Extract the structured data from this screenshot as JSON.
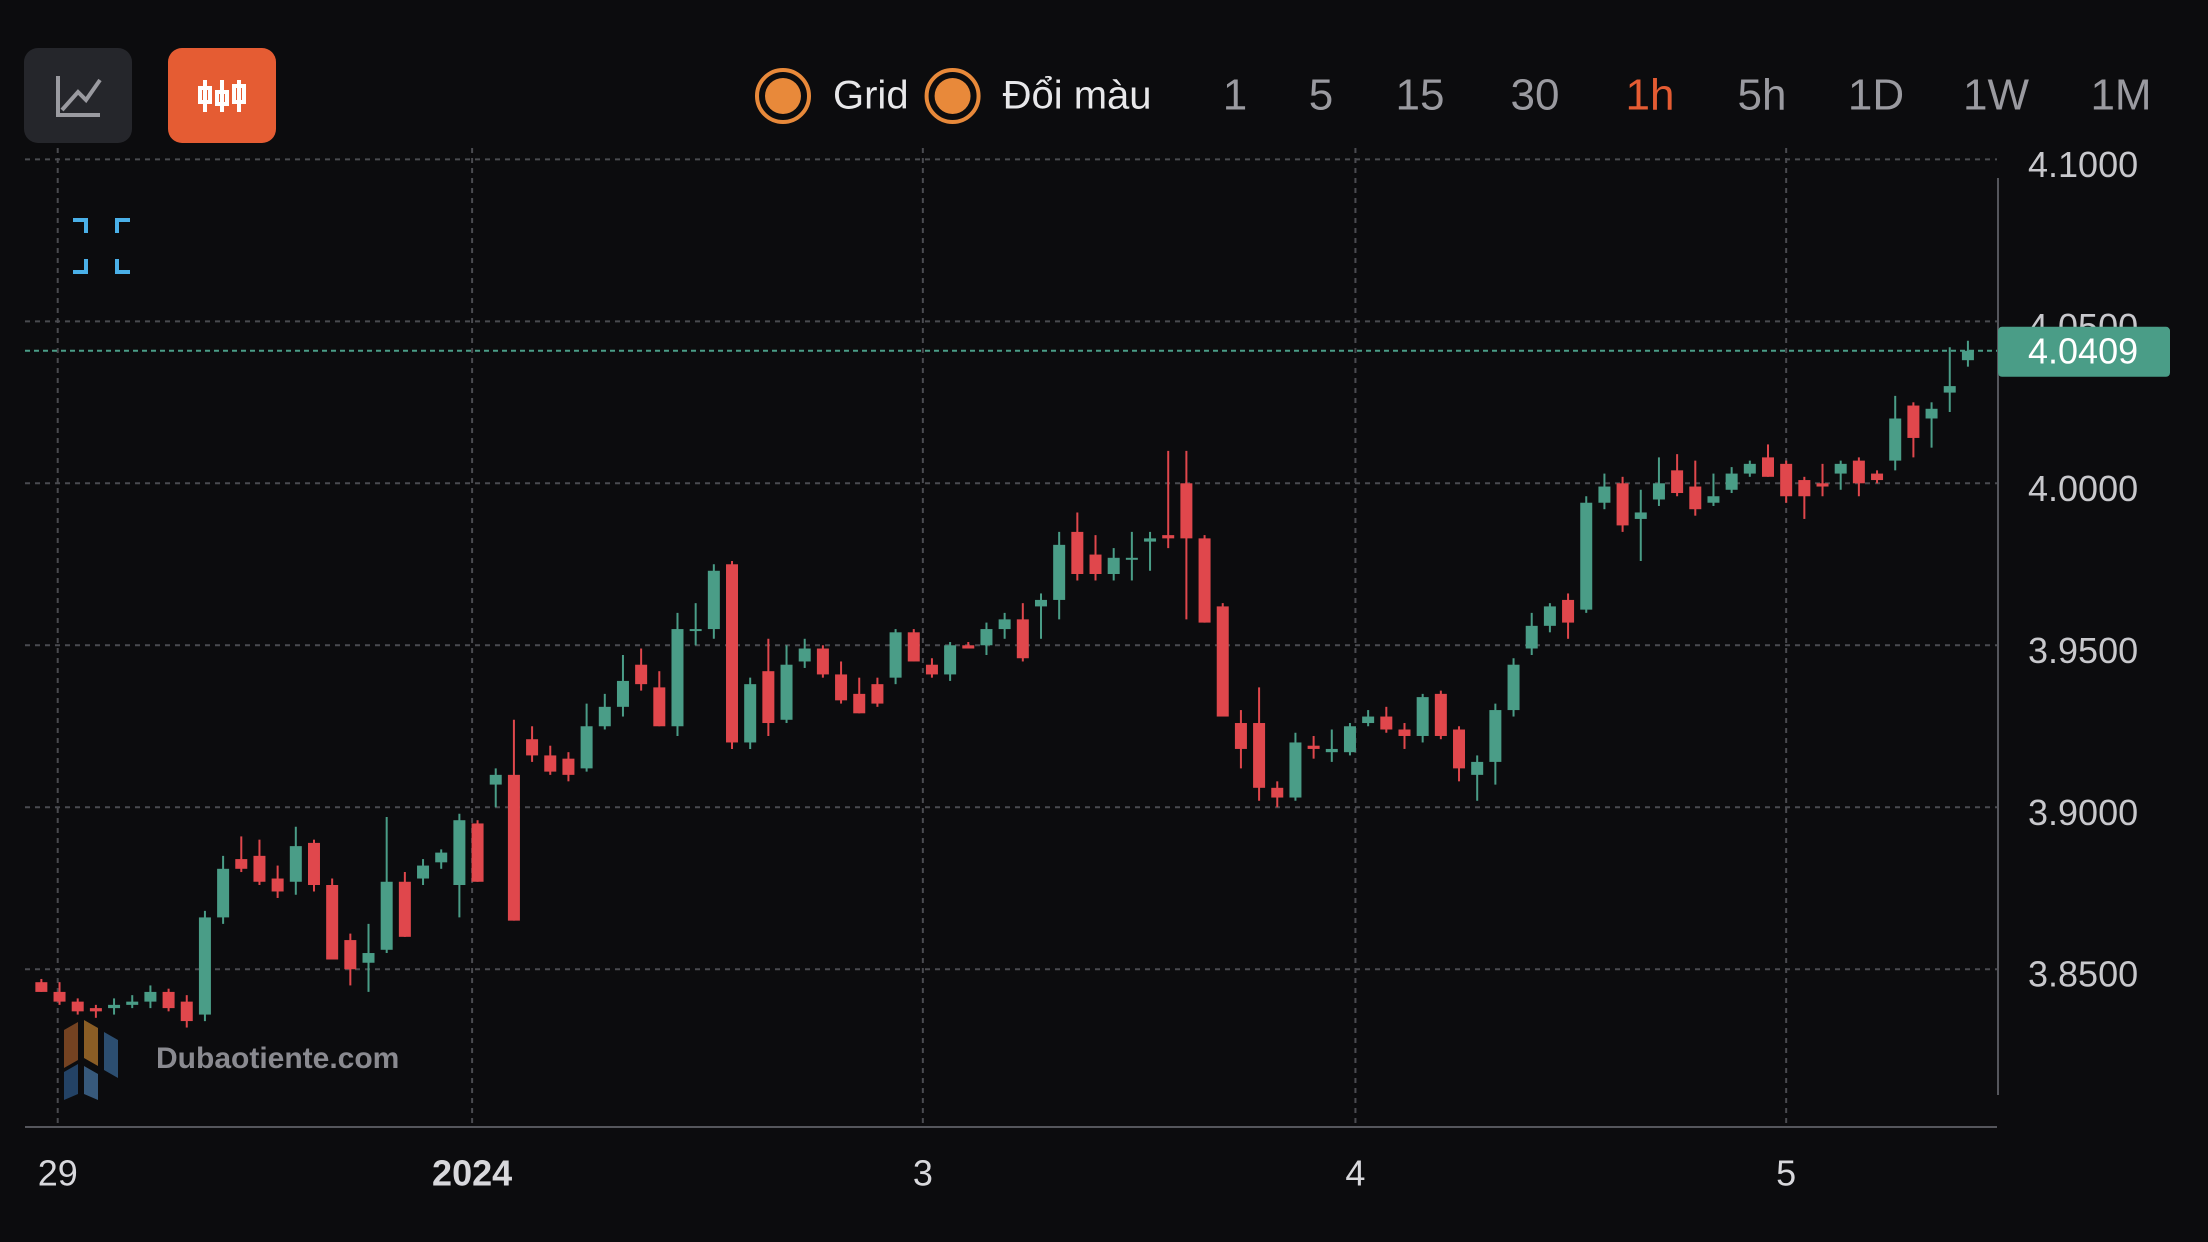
{
  "toolbar": {
    "toggles": [
      "Grid",
      "Đổi màu"
    ],
    "intervals": [
      "1",
      "5",
      "15",
      "30",
      "1h",
      "5h",
      "1D",
      "1W",
      "1M"
    ],
    "active_interval": "1h"
  },
  "watermark": "Dubaotiente.com",
  "chart_data": {
    "type": "candlestick",
    "grid": true,
    "up_color": "#4a9d87",
    "down_color": "#e0474c",
    "x": [
      0,
      1,
      2,
      3,
      4,
      5,
      6,
      7,
      8,
      9,
      10,
      11,
      12,
      13,
      14,
      15,
      16,
      17,
      18,
      19,
      20,
      21,
      22,
      23,
      24,
      25,
      26,
      27,
      28,
      29,
      30,
      31,
      32,
      33,
      34,
      35,
      36,
      37,
      38,
      39,
      40,
      41,
      42,
      43,
      44,
      45,
      46,
      47,
      48,
      49,
      50,
      51,
      52,
      53,
      54,
      55,
      56,
      57,
      58,
      59,
      60,
      61,
      62,
      63,
      64,
      65,
      66,
      67,
      68,
      69,
      70,
      71,
      72,
      73,
      74,
      75,
      76,
      77,
      78,
      79,
      80,
      81,
      82,
      83,
      84,
      85,
      86,
      87,
      88,
      89,
      90,
      91,
      92,
      93,
      94,
      95,
      96,
      97,
      98,
      99,
      100,
      101,
      102,
      103,
      104,
      105,
      106
    ],
    "open": [
      3.846,
      3.843,
      3.84,
      3.838,
      3.838,
      3.839,
      3.84,
      3.843,
      3.84,
      3.836,
      3.866,
      3.884,
      3.885,
      3.878,
      3.877,
      3.889,
      3.876,
      3.859,
      3.852,
      3.856,
      3.877,
      3.878,
      3.883,
      3.876,
      3.895,
      3.907,
      3.91,
      3.921,
      3.916,
      3.915,
      3.912,
      3.925,
      3.931,
      3.944,
      3.937,
      3.925,
      3.955,
      3.955,
      3.975,
      3.92,
      3.942,
      3.927,
      3.945,
      3.949,
      3.941,
      3.935,
      3.938,
      3.94,
      3.954,
      3.944,
      3.941,
      3.95,
      3.95,
      3.955,
      3.958,
      3.962,
      3.964,
      3.985,
      3.978,
      3.972,
      3.977,
      3.982,
      3.984,
      4.0,
      3.983,
      3.962,
      3.926,
      3.926,
      3.906,
      3.903,
      3.919,
      3.917,
      3.917,
      3.926,
      3.928,
      3.924,
      3.922,
      3.935,
      3.924,
      3.91,
      3.914,
      3.93,
      3.949,
      3.956,
      3.964,
      3.961,
      3.994,
      4.0,
      3.989,
      3.995,
      4.004,
      3.999,
      3.994,
      3.998,
      4.003,
      4.008,
      4.006,
      4.001,
      4.0,
      4.003,
      4.007,
      4.003,
      4.007,
      4.024,
      4.02,
      4.028,
      4.038
    ],
    "high": [
      3.847,
      3.846,
      3.841,
      3.839,
      3.841,
      3.842,
      3.845,
      3.844,
      3.842,
      3.868,
      3.885,
      3.891,
      3.89,
      3.882,
      3.894,
      3.89,
      3.878,
      3.861,
      3.864,
      3.897,
      3.88,
      3.884,
      3.887,
      3.898,
      3.896,
      3.912,
      3.927,
      3.925,
      3.919,
      3.917,
      3.932,
      3.935,
      3.947,
      3.949,
      3.942,
      3.96,
      3.963,
      3.975,
      3.976,
      3.94,
      3.952,
      3.95,
      3.952,
      3.95,
      3.945,
      3.94,
      3.94,
      3.955,
      3.955,
      3.946,
      3.951,
      3.951,
      3.957,
      3.96,
      3.963,
      3.966,
      3.985,
      3.991,
      3.984,
      3.98,
      3.985,
      3.985,
      4.01,
      4.01,
      3.984,
      3.963,
      3.93,
      3.937,
      3.908,
      3.923,
      3.922,
      3.924,
      3.926,
      3.93,
      3.931,
      3.926,
      3.935,
      3.936,
      3.925,
      3.916,
      3.932,
      3.946,
      3.96,
      3.963,
      3.966,
      3.996,
      4.003,
      4.002,
      3.998,
      4.008,
      4.009,
      4.007,
      4.003,
      4.005,
      4.007,
      4.012,
      4.007,
      4.002,
      4.006,
      4.007,
      4.008,
      4.004,
      4.027,
      4.025,
      4.025,
      4.042,
      4.044
    ],
    "low": [
      3.843,
      3.839,
      3.836,
      3.835,
      3.836,
      3.838,
      3.838,
      3.837,
      3.832,
      3.834,
      3.864,
      3.88,
      3.876,
      3.872,
      3.873,
      3.874,
      3.853,
      3.845,
      3.843,
      3.855,
      3.86,
      3.876,
      3.881,
      3.866,
      3.877,
      3.9,
      3.865,
      3.914,
      3.91,
      3.908,
      3.911,
      3.924,
      3.928,
      3.936,
      3.925,
      3.922,
      3.95,
      3.952,
      3.918,
      3.918,
      3.922,
      3.926,
      3.943,
      3.94,
      3.932,
      3.929,
      3.931,
      3.938,
      3.945,
      3.94,
      3.939,
      3.949,
      3.947,
      3.952,
      3.945,
      3.952,
      3.958,
      3.97,
      3.97,
      3.97,
      3.97,
      3.973,
      3.98,
      3.958,
      3.957,
      3.928,
      3.912,
      3.902,
      3.9,
      3.902,
      3.915,
      3.914,
      3.916,
      3.925,
      3.923,
      3.918,
      3.92,
      3.921,
      3.908,
      3.902,
      3.907,
      3.928,
      3.947,
      3.954,
      3.952,
      3.96,
      3.992,
      3.985,
      3.976,
      3.993,
      3.996,
      3.99,
      3.993,
      3.997,
      4.002,
      4.002,
      3.994,
      3.989,
      3.996,
      3.998,
      3.996,
      4.0,
      4.004,
      4.008,
      4.011,
      4.022,
      4.036
    ],
    "close": [
      3.843,
      3.84,
      3.837,
      3.837,
      3.839,
      3.84,
      3.843,
      3.838,
      3.834,
      3.866,
      3.881,
      3.881,
      3.877,
      3.874,
      3.888,
      3.876,
      3.853,
      3.85,
      3.855,
      3.877,
      3.86,
      3.882,
      3.886,
      3.896,
      3.877,
      3.91,
      3.865,
      3.916,
      3.911,
      3.91,
      3.925,
      3.931,
      3.939,
      3.938,
      3.925,
      3.955,
      3.955,
      3.973,
      3.92,
      3.938,
      3.926,
      3.944,
      3.949,
      3.941,
      3.933,
      3.929,
      3.932,
      3.954,
      3.945,
      3.941,
      3.95,
      3.949,
      3.955,
      3.958,
      3.946,
      3.964,
      3.981,
      3.972,
      3.972,
      3.977,
      3.977,
      3.983,
      3.983,
      3.983,
      3.957,
      3.928,
      3.918,
      3.906,
      3.903,
      3.92,
      3.918,
      3.918,
      3.925,
      3.928,
      3.924,
      3.922,
      3.934,
      3.922,
      3.912,
      3.914,
      3.93,
      3.944,
      3.956,
      3.962,
      3.957,
      3.994,
      3.999,
      3.987,
      3.991,
      4.0,
      3.997,
      3.992,
      3.996,
      4.003,
      4.006,
      4.002,
      3.996,
      3.996,
      3.999,
      4.006,
      4.0,
      4.001,
      4.02,
      4.014,
      4.023,
      4.03,
      4.0409
    ],
    "xlim": [
      -0.9,
      107.6
    ],
    "xticks": [
      {
        "value": 0.9,
        "label": "29"
      },
      {
        "value": 23.7,
        "label": "2024"
      },
      {
        "value": 48.5,
        "label": "3"
      },
      {
        "value": 72.3,
        "label": "4"
      },
      {
        "value": 96,
        "label": "5"
      }
    ],
    "ylim": [
      3.8013,
      4.1035
    ],
    "yticks": [
      {
        "value": 3.85,
        "label": "3.8500"
      },
      {
        "value": 3.9,
        "label": "3.9000"
      },
      {
        "value": 3.95,
        "label": "3.9500"
      },
      {
        "value": 4.0,
        "label": "4.0000"
      },
      {
        "value": 4.05,
        "label": "4.0500"
      },
      {
        "value": 4.1,
        "label": "4.1000"
      }
    ]
  }
}
